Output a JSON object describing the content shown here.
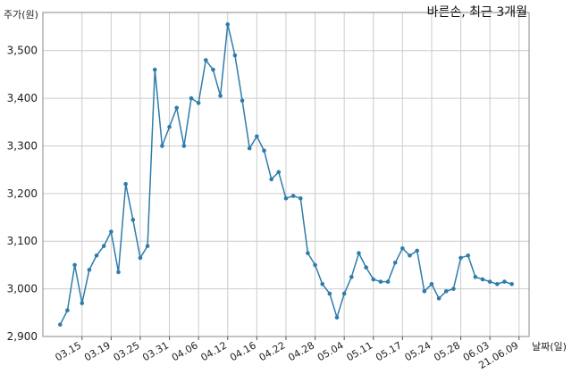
{
  "chart_data": {
    "type": "line",
    "title": "바른손, 최근 3개월",
    "ylabel": "주가(원)",
    "xlabel": "날짜(일)",
    "ylim": [
      2900,
      3580
    ],
    "yticks": [
      2900,
      3000,
      3100,
      3200,
      3300,
      3400,
      3500
    ],
    "ytick_labels": [
      "2,900",
      "3,000",
      "3,100",
      "3,200",
      "3,300",
      "3,400",
      "3,500"
    ],
    "xtick_labels": [
      {
        "label": "03.15",
        "index": 3
      },
      {
        "label": "03.19",
        "index": 7
      },
      {
        "label": "03.25",
        "index": 11
      },
      {
        "label": "03.31",
        "index": 15
      },
      {
        "label": "04.06",
        "index": 19
      },
      {
        "label": "04.12",
        "index": 23
      },
      {
        "label": "04.16",
        "index": 27
      },
      {
        "label": "04.22",
        "index": 31
      },
      {
        "label": "04.28",
        "index": 35
      },
      {
        "label": "05.04",
        "index": 39
      },
      {
        "label": "05.11",
        "index": 43
      },
      {
        "label": "05.17",
        "index": 47
      },
      {
        "label": "05.24",
        "index": 51
      },
      {
        "label": "05.28",
        "index": 55
      },
      {
        "label": "06.03",
        "index": 59
      },
      {
        "label": "21.06.09",
        "index": 63
      }
    ],
    "grid": true,
    "line_color": "#2f7cab",
    "series": [
      {
        "values": [
          2925,
          2955,
          3050,
          2970,
          3040,
          3070,
          3090,
          3120,
          3035,
          3220,
          3145,
          3065,
          3090,
          3460,
          3300,
          3340,
          3380,
          3300,
          3400,
          3390,
          3480,
          3460,
          3405,
          3555,
          3490,
          3395,
          3295,
          3320,
          3290,
          3230,
          3245,
          3190,
          3195,
          3190,
          3075,
          3050,
          3010,
          2990,
          2940,
          2990,
          3025,
          3075,
          3045,
          3020,
          3015,
          3015,
          3055,
          3085,
          3070,
          3080,
          2995,
          3010,
          2980,
          2995,
          3000,
          3065,
          3070,
          3025,
          3020,
          3015,
          3010,
          3015,
          3010
        ]
      }
    ]
  }
}
